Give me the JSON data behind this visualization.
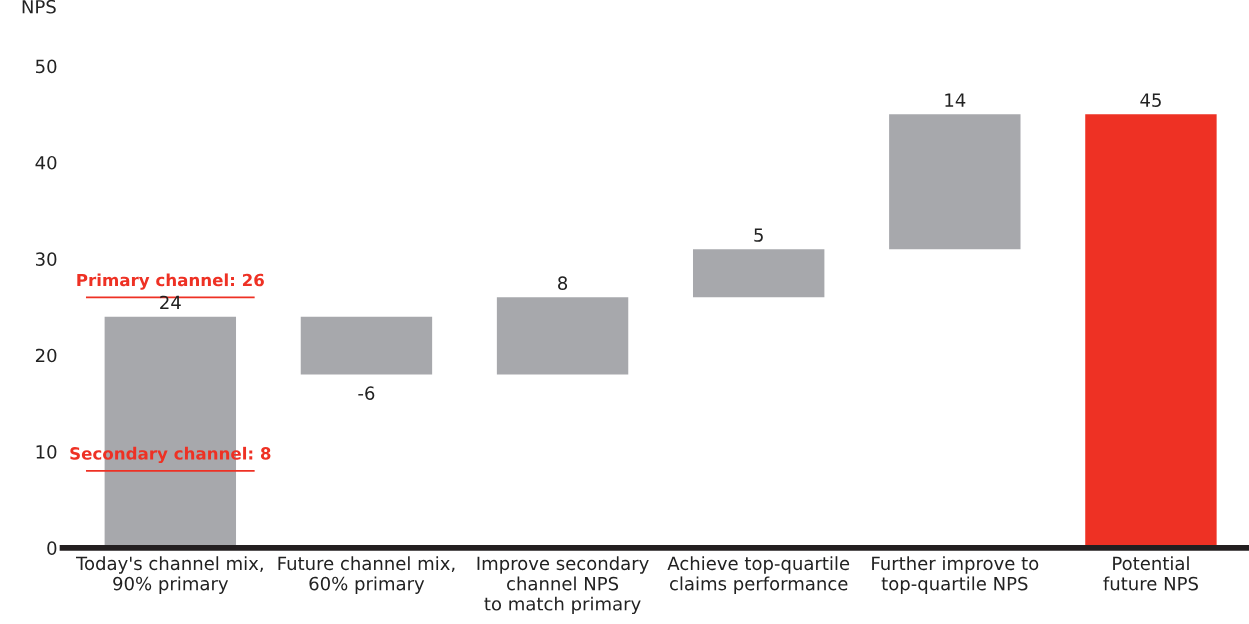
{
  "chart_data": {
    "type": "bar",
    "ylabel": "NPS",
    "categories": [
      "Today's channel mix,\n90% primary",
      "Future channel mix,\n60% primary",
      "Improve secondary\nchannel NPS\nto match primary",
      "Achieve top-quartile\nclaims performance",
      "Further improve to\ntop-quartile NPS",
      "Potential\nfuture NPS"
    ],
    "values": [
      24,
      -6,
      8,
      5,
      14,
      45
    ],
    "base": [
      0,
      24,
      18,
      26,
      31,
      0
    ],
    "colors": [
      "#a7a8ac",
      "#a7a8ac",
      "#a7a8ac",
      "#a7a8ac",
      "#a7a8ac",
      "#ee3124"
    ],
    "ylim": [
      0,
      50
    ],
    "yticks": [
      0,
      10,
      20,
      30,
      40,
      50
    ],
    "data_labels": true,
    "grid": false,
    "ref_lines": [
      {
        "axis": "y",
        "value": 26,
        "label": "Primary channel: 26",
        "color": "#ee3124"
      },
      {
        "axis": "y",
        "value": 8,
        "label": "Secondary channel: 8",
        "color": "#ee3124"
      }
    ]
  }
}
